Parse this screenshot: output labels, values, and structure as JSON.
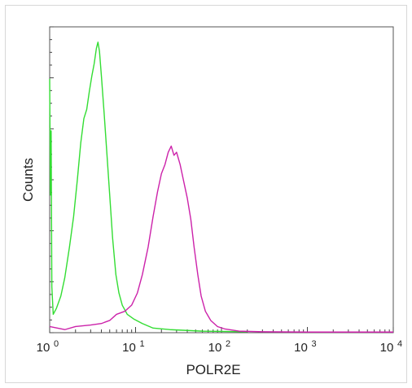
{
  "chart_data": {
    "type": "line",
    "title": "",
    "xlabel": "POLR2E",
    "ylabel": "Counts",
    "xscale": "log",
    "xlim": [
      1,
      10000
    ],
    "ylim": [
      0,
      1
    ],
    "x_ticks": [
      {
        "base": "10",
        "exp": "0"
      },
      {
        "base": "10",
        "exp": "1"
      },
      {
        "base": "10",
        "exp": "2"
      },
      {
        "base": "10",
        "exp": "3"
      },
      {
        "base": "10",
        "exp": "4"
      }
    ],
    "grid": false,
    "legend": "none",
    "series": [
      {
        "color": "#33dd33",
        "points": [
          [
            1.0,
            0.83
          ],
          [
            1.02,
            0.45
          ],
          [
            1.04,
            0.66
          ],
          [
            1.06,
            0.15
          ],
          [
            1.1,
            0.06
          ],
          [
            1.2,
            0.08
          ],
          [
            1.35,
            0.12
          ],
          [
            1.5,
            0.18
          ],
          [
            1.7,
            0.28
          ],
          [
            1.9,
            0.38
          ],
          [
            2.1,
            0.5
          ],
          [
            2.3,
            0.62
          ],
          [
            2.5,
            0.7
          ],
          [
            2.7,
            0.73
          ],
          [
            2.9,
            0.79
          ],
          [
            3.1,
            0.84
          ],
          [
            3.3,
            0.88
          ],
          [
            3.5,
            0.93
          ],
          [
            3.65,
            0.95
          ],
          [
            3.8,
            0.92
          ],
          [
            4.0,
            0.84
          ],
          [
            4.3,
            0.72
          ],
          [
            4.6,
            0.6
          ],
          [
            5.0,
            0.45
          ],
          [
            5.4,
            0.31
          ],
          [
            5.9,
            0.19
          ],
          [
            6.4,
            0.13
          ],
          [
            7.0,
            0.09
          ],
          [
            8.0,
            0.06
          ],
          [
            9.5,
            0.045
          ],
          [
            12.0,
            0.03
          ],
          [
            16.0,
            0.015
          ],
          [
            25.0,
            0.01
          ],
          [
            60.0,
            0.005
          ],
          [
            200.0,
            0.003
          ]
        ]
      },
      {
        "color": "#cc22aa",
        "points": [
          [
            1.0,
            0.02
          ],
          [
            1.5,
            0.01
          ],
          [
            2.0,
            0.02
          ],
          [
            3.0,
            0.025
          ],
          [
            4.0,
            0.03
          ],
          [
            5.0,
            0.04
          ],
          [
            6.0,
            0.06
          ],
          [
            7.5,
            0.07
          ],
          [
            9.0,
            0.09
          ],
          [
            10.5,
            0.13
          ],
          [
            12.0,
            0.19
          ],
          [
            14.0,
            0.28
          ],
          [
            16.0,
            0.38
          ],
          [
            18.0,
            0.46
          ],
          [
            20.0,
            0.52
          ],
          [
            22.0,
            0.55
          ],
          [
            24.0,
            0.59
          ],
          [
            26.0,
            0.61
          ],
          [
            28.0,
            0.58
          ],
          [
            30.0,
            0.59
          ],
          [
            33.0,
            0.55
          ],
          [
            36.0,
            0.5
          ],
          [
            40.0,
            0.44
          ],
          [
            44.0,
            0.37
          ],
          [
            48.0,
            0.28
          ],
          [
            53.0,
            0.19
          ],
          [
            58.0,
            0.12
          ],
          [
            65.0,
            0.07
          ],
          [
            75.0,
            0.04
          ],
          [
            90.0,
            0.02
          ],
          [
            110.0,
            0.012
          ],
          [
            160.0,
            0.005
          ],
          [
            300.0,
            0.003
          ],
          [
            1000.0,
            0.002
          ],
          [
            10000.0,
            0.002
          ]
        ]
      }
    ]
  }
}
